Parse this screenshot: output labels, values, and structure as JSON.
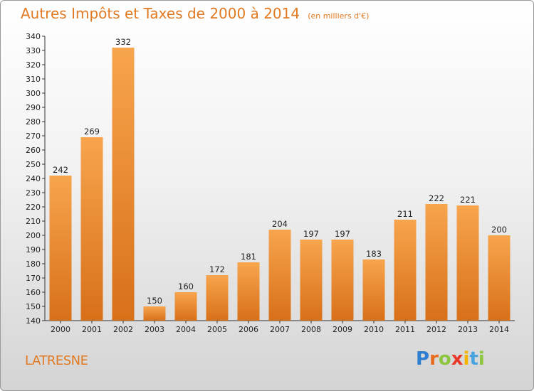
{
  "title": "Autres Impôts et Taxes de 2000 à 2014",
  "unit_note": "(en milliers d'€)",
  "commune": "LATRESNE",
  "logo": {
    "letters": [
      "P",
      "r",
      "o",
      "x",
      "i",
      "t",
      "i"
    ],
    "colors": [
      "#2f7fd0",
      "#e86a1c",
      "#8cc63f",
      "#e8382a",
      "#f4b400",
      "#4aa3df",
      "#8cc63f"
    ]
  },
  "colors": {
    "accent": "#e07a24",
    "bar_light": "#f7a54e",
    "bar_dark": "#d87018"
  },
  "chart_data": {
    "type": "bar",
    "title": "Autres Impôts et Taxes de 2000 à 2014",
    "subtitle": "(en milliers d'€)",
    "xlabel": "",
    "ylabel": "",
    "categories": [
      "2000",
      "2001",
      "2002",
      "2003",
      "2004",
      "2005",
      "2006",
      "2007",
      "2008",
      "2009",
      "2010",
      "2011",
      "2012",
      "2013",
      "2014"
    ],
    "values": [
      242,
      269,
      332,
      150,
      160,
      172,
      181,
      204,
      197,
      197,
      183,
      211,
      222,
      221,
      200
    ],
    "ylim": [
      140,
      340
    ],
    "ytick_step": 10,
    "grid": false,
    "legend": "none"
  }
}
